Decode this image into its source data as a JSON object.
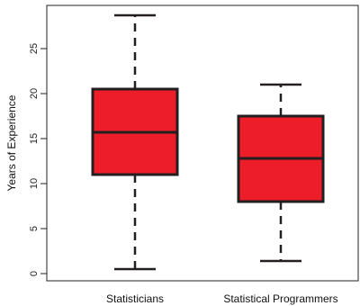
{
  "chart_data": {
    "type": "boxplot",
    "categories": [
      "Statisticians",
      "Statistical Programmers"
    ],
    "series": [
      {
        "whisker_low": 0.5,
        "q1": 11.0,
        "median": 15.7,
        "q3": 20.5,
        "whisker_high": 28.7
      },
      {
        "whisker_low": 1.4,
        "q1": 8.0,
        "median": 12.8,
        "q3": 17.5,
        "whisker_high": 21.0
      }
    ],
    "ylabel": "Years of Experience",
    "ylim": [
      0,
      29.7
    ],
    "yticks": [
      0,
      5,
      10,
      15,
      20,
      25
    ],
    "colors": {
      "box_fill": "#ee1d2a",
      "stroke": "#231f20"
    },
    "grid": false
  }
}
